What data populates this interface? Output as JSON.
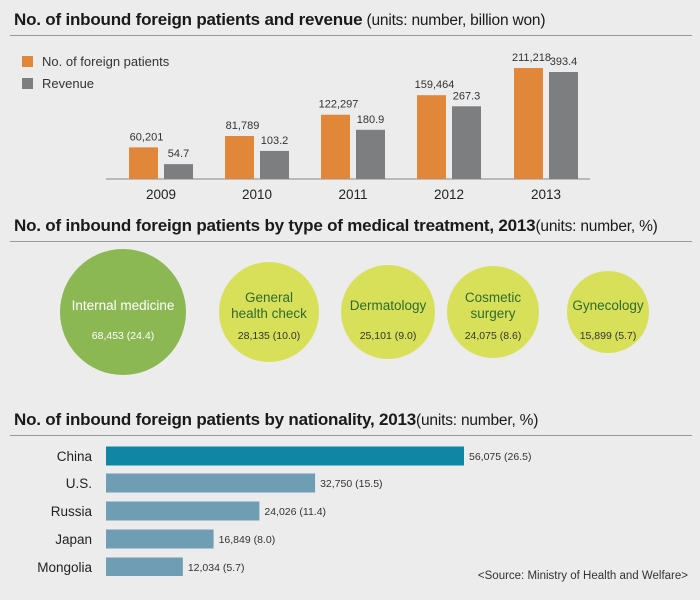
{
  "titles": {
    "revenue_title": "No. of inbound foreign patients and revenue",
    "revenue_units": " (units: number, billion won)",
    "treatment_title": "No. of inbound foreign patients by type of medical treatment, 2013",
    "treatment_units": "(units: number, %)",
    "nationality_title": "No. of inbound foreign patients by nationality, 2013",
    "nationality_units": "(units: number, %)"
  },
  "source": "<Source: Ministry of Health and Welfare>",
  "colors": {
    "orange": "#e0873a",
    "gray": "#7d7e80",
    "green_large": "#8cb854",
    "yellow_green": "#d8e05a",
    "teal": "#0f86a4",
    "steel_blue": "#6f9db4"
  },
  "chart_data": [
    {
      "type": "bar",
      "categories": [
        "2009",
        "2010",
        "2011",
        "2012",
        "2013"
      ],
      "series": [
        {
          "name": "No. of foreign patients",
          "values": [
            60201,
            81789,
            122297,
            159464,
            211218
          ],
          "labels": [
            "60,201",
            "81,789",
            "122,297",
            "159,464",
            "211,218"
          ]
        },
        {
          "name": "Revenue",
          "values": [
            54.7,
            103.2,
            180.9,
            267.3,
            393.4
          ],
          "labels": [
            "54.7",
            "103.2",
            "180.9",
            "267.3",
            "393.4"
          ]
        }
      ],
      "legend": "top-left"
    },
    {
      "type": "bubble",
      "items": [
        {
          "name": "Internal medicine",
          "value": 68453,
          "percent": 24.4,
          "label": "68,453 (24.4)"
        },
        {
          "name": "General health check",
          "value": 28135,
          "percent": 10.0,
          "label": "28,135 (10.0)"
        },
        {
          "name": "Dermatology",
          "value": 25101,
          "percent": 9.0,
          "label": "25,101 (9.0)"
        },
        {
          "name": "Cosmetic surgery",
          "value": 24075,
          "percent": 8.6,
          "label": "24,075 (8.6)"
        },
        {
          "name": "Gynecology",
          "value": 15899,
          "percent": 5.7,
          "label": "15,899 (5.7)"
        }
      ]
    },
    {
      "type": "bar",
      "orientation": "horizontal",
      "categories": [
        "China",
        "U.S.",
        "Russia",
        "Japan",
        "Mongolia"
      ],
      "values": [
        56075,
        32750,
        24026,
        16849,
        12034
      ],
      "percents": [
        26.5,
        15.5,
        11.4,
        8.0,
        5.7
      ],
      "labels": [
        "56,075 (26.5)",
        "32,750 (15.5)",
        "24,026 (11.4)",
        "16,849 (8.0)",
        "12,034 (5.7)"
      ]
    }
  ]
}
